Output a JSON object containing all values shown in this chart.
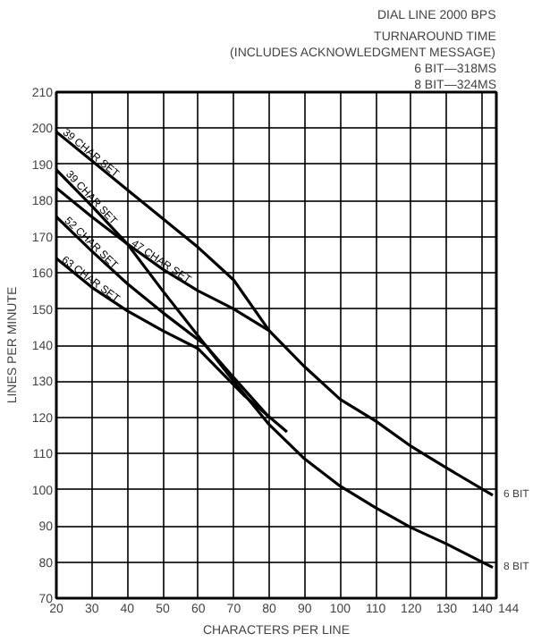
{
  "chart_data": {
    "type": "line",
    "title": "DIAL LINE 2000 BPS",
    "annotations": [
      "TURNAROUND TIME",
      "(INCLUDES ACKNOWLEDGMENT MESSAGE)",
      "6 BIT—318MS",
      "8 BIT—324MS",
      {
        "text": "6 BIT",
        "x": 143,
        "y": 98.5
      },
      {
        "text": "8 BIT",
        "x": 143,
        "y": 78.5
      }
    ],
    "xlabel": "CHARACTERS PER LINE",
    "ylabel": "LINES PER MINUTE",
    "series": [
      {
        "name": "39 CHAR SET",
        "color": "#000000",
        "x": [
          20,
          30,
          40,
          50,
          60,
          70,
          80,
          90,
          100,
          110,
          120,
          130,
          143
        ],
        "values": [
          199,
          191,
          183,
          175,
          167,
          158,
          144,
          134,
          125,
          119,
          112,
          106,
          98.5
        ]
      },
      {
        "name": "39 CHAR SET",
        "color": "#000000",
        "x": [
          20,
          30,
          40,
          50,
          62,
          70,
          80,
          90,
          100,
          110,
          120,
          130,
          143
        ],
        "values": [
          188.5,
          178.5,
          168,
          155,
          140,
          130,
          118,
          108.5,
          101,
          95,
          89.5,
          85,
          78.5
        ]
      },
      {
        "name": "47 CHAR SET",
        "color": "#000000",
        "x": [
          20,
          30,
          40,
          50,
          60,
          70,
          80
        ],
        "values": [
          183.5,
          175.5,
          168,
          161,
          155,
          150,
          144
        ]
      },
      {
        "name": "52 CHAR SET",
        "color": "#000000",
        "x": [
          20,
          30,
          40,
          50,
          62,
          70,
          80
        ],
        "values": [
          175.5,
          166,
          157,
          149,
          140,
          131,
          120
        ]
      },
      {
        "name": "63 CHAR SET",
        "color": "#000000",
        "x": [
          20,
          30,
          40,
          50,
          60,
          73,
          85
        ],
        "values": [
          164,
          156,
          149.5,
          144,
          139,
          126,
          116
        ]
      }
    ],
    "xlim": [
      20,
      144
    ],
    "xticks": [
      20,
      30,
      40,
      50,
      60,
      70,
      80,
      90,
      100,
      110,
      120,
      130,
      140,
      144
    ],
    "ylim": [
      70,
      210
    ],
    "yticks": [
      70,
      80,
      90,
      100,
      110,
      120,
      130,
      140,
      150,
      160,
      170,
      180,
      190,
      200,
      210
    ],
    "grid": true,
    "marker": "none",
    "line_style": "solid"
  }
}
